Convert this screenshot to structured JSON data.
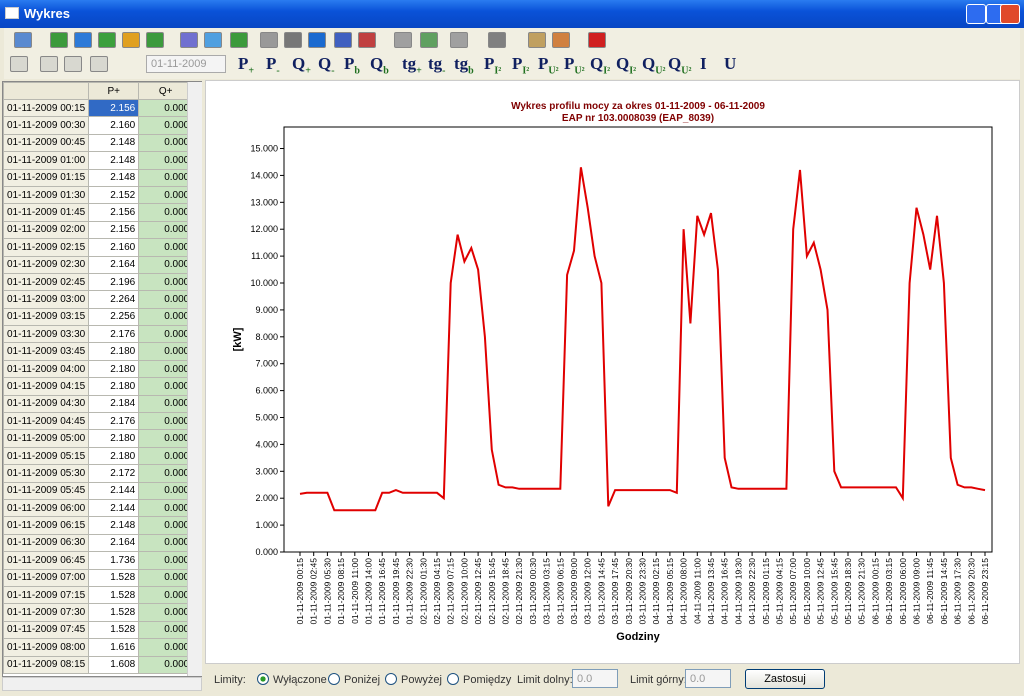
{
  "window": {
    "title": "Wykres"
  },
  "toolbar": {
    "date": "01-11-2009",
    "buttons": [
      {
        "base": "P",
        "sub": "+"
      },
      {
        "base": "P",
        "sub": "-"
      },
      {
        "base": "Q",
        "sub": "+"
      },
      {
        "base": "Q",
        "sub": "-"
      },
      {
        "base": "P",
        "sub": "b"
      },
      {
        "base": "Q",
        "sub": "b"
      },
      {
        "base": "tg",
        "sub": "+"
      },
      {
        "base": "tg",
        "sub": "-"
      },
      {
        "base": "tg",
        "sub": "b"
      },
      {
        "base": "P",
        "sub": "I²"
      },
      {
        "base": "P",
        "sub": "I²"
      },
      {
        "base": "P",
        "sub": "U²"
      },
      {
        "base": "P",
        "sub": "U²"
      },
      {
        "base": "Q",
        "sub": "I²"
      },
      {
        "base": "Q",
        "sub": "I²"
      },
      {
        "base": "Q",
        "sub": "U²"
      },
      {
        "base": "Q",
        "sub": "U²"
      },
      {
        "base": "I"
      },
      {
        "base": "U"
      }
    ]
  },
  "table": {
    "header": [
      "P+",
      "Q+"
    ],
    "rows": [
      [
        "01-11-2009 00:15",
        "2.156",
        "0.000"
      ],
      [
        "01-11-2009 00:30",
        "2.160",
        "0.000"
      ],
      [
        "01-11-2009 00:45",
        "2.148",
        "0.000"
      ],
      [
        "01-11-2009 01:00",
        "2.148",
        "0.000"
      ],
      [
        "01-11-2009 01:15",
        "2.148",
        "0.000"
      ],
      [
        "01-11-2009 01:30",
        "2.152",
        "0.000"
      ],
      [
        "01-11-2009 01:45",
        "2.156",
        "0.000"
      ],
      [
        "01-11-2009 02:00",
        "2.156",
        "0.000"
      ],
      [
        "01-11-2009 02:15",
        "2.160",
        "0.000"
      ],
      [
        "01-11-2009 02:30",
        "2.164",
        "0.000"
      ],
      [
        "01-11-2009 02:45",
        "2.196",
        "0.000"
      ],
      [
        "01-11-2009 03:00",
        "2.264",
        "0.000"
      ],
      [
        "01-11-2009 03:15",
        "2.256",
        "0.000"
      ],
      [
        "01-11-2009 03:30",
        "2.176",
        "0.000"
      ],
      [
        "01-11-2009 03:45",
        "2.180",
        "0.000"
      ],
      [
        "01-11-2009 04:00",
        "2.180",
        "0.000"
      ],
      [
        "01-11-2009 04:15",
        "2.180",
        "0.000"
      ],
      [
        "01-11-2009 04:30",
        "2.184",
        "0.000"
      ],
      [
        "01-11-2009 04:45",
        "2.176",
        "0.000"
      ],
      [
        "01-11-2009 05:00",
        "2.180",
        "0.000"
      ],
      [
        "01-11-2009 05:15",
        "2.180",
        "0.000"
      ],
      [
        "01-11-2009 05:30",
        "2.172",
        "0.000"
      ],
      [
        "01-11-2009 05:45",
        "2.144",
        "0.000"
      ],
      [
        "01-11-2009 06:00",
        "2.144",
        "0.000"
      ],
      [
        "01-11-2009 06:15",
        "2.148",
        "0.000"
      ],
      [
        "01-11-2009 06:30",
        "2.164",
        "0.000"
      ],
      [
        "01-11-2009 06:45",
        "1.736",
        "0.000"
      ],
      [
        "01-11-2009 07:00",
        "1.528",
        "0.000"
      ],
      [
        "01-11-2009 07:15",
        "1.528",
        "0.000"
      ],
      [
        "01-11-2009 07:30",
        "1.528",
        "0.000"
      ],
      [
        "01-11-2009 07:45",
        "1.528",
        "0.000"
      ],
      [
        "01-11-2009 08:00",
        "1.616",
        "0.000"
      ],
      [
        "01-11-2009 08:15",
        "1.608",
        "0.000"
      ]
    ]
  },
  "chart_data": {
    "type": "line",
    "title": "Wykres profilu mocy za okres 01-11-2009 - 06-11-2009",
    "subtitle": "EAP nr 103.0008039 (EAP_8039)",
    "y_label": "[kW]",
    "x_label": "Godziny",
    "color": "#e00000",
    "categories": [
      "01-11-2009 00:15",
      null,
      "01-11-2009 02:45",
      null,
      "01-11-2009 05:30",
      null,
      "01-11-2009 08:15",
      null,
      "01-11-2009 11:00",
      null,
      "01-11-2009 14:00",
      null,
      "01-11-2009 16:45",
      null,
      "01-11-2009 19:45",
      null,
      "01-11-2009 22:30",
      null,
      "02-11-2009 01:30",
      null,
      "02-11-2009 04:15",
      null,
      "02-11-2009 07:15",
      null,
      "02-11-2009 10:00",
      null,
      "02-11-2009 12:45",
      null,
      "02-11-2009 15:45",
      null,
      "02-11-2009 18:45",
      null,
      "02-11-2009 21:30",
      null,
      "03-11-2009 00:30",
      null,
      "03-11-2009 03:15",
      null,
      "03-11-2009 06:15",
      null,
      "03-11-2009 09:00",
      null,
      "03-11-2009 12:00",
      null,
      "03-11-2009 14:45",
      null,
      "03-11-2009 17:45",
      null,
      "03-11-2009 20:30",
      null,
      "03-11-2009 23:30",
      null,
      "04-11-2009 02:15",
      null,
      "04-11-2009 05:15",
      null,
      "04-11-2009 08:00",
      null,
      "04-11-2009 11:00",
      null,
      "04-11-2009 13:45",
      null,
      "04-11-2009 16:45",
      null,
      "04-11-2009 19:30",
      null,
      "04-11-2009 22:30",
      null,
      "05-11-2009 01:15",
      null,
      "05-11-2009 04:15",
      null,
      "05-11-2009 07:00",
      null,
      "05-11-2009 10:00",
      null,
      "05-11-2009 12:45",
      null,
      "05-11-2009 15:45",
      null,
      "05-11-2009 18:30",
      null,
      "05-11-2009 21:30",
      null,
      "06-11-2009 00:15",
      null,
      "06-11-2009 03:15",
      null,
      "06-11-2009 06:00",
      null,
      "06-11-2009 09:00",
      null,
      "06-11-2009 11:45",
      null,
      "06-11-2009 14:45",
      null,
      "06-11-2009 17:30",
      null,
      "06-11-2009 20:30",
      null,
      "06-11-2009 23:15"
    ],
    "values": [
      2.16,
      2.2,
      2.2,
      2.2,
      2.2,
      1.55,
      1.55,
      1.55,
      1.55,
      1.55,
      1.55,
      1.55,
      2.2,
      2.2,
      2.3,
      2.2,
      2.2,
      2.2,
      2.2,
      2.2,
      2.2,
      2.0,
      10.0,
      11.8,
      10.8,
      11.3,
      10.5,
      8.0,
      3.8,
      2.5,
      2.4,
      2.4,
      2.35,
      2.35,
      2.35,
      2.35,
      2.35,
      2.35,
      2.35,
      10.3,
      11.2,
      14.3,
      12.8,
      11.0,
      10.0,
      1.7,
      2.3,
      2.3,
      2.3,
      2.3,
      2.3,
      2.3,
      2.3,
      2.3,
      2.3,
      2.2,
      12.0,
      8.5,
      12.5,
      11.8,
      12.6,
      10.5,
      3.5,
      2.4,
      2.35,
      2.35,
      2.35,
      2.35,
      2.35,
      2.35,
      2.35,
      2.35,
      12.0,
      14.2,
      11.0,
      11.5,
      10.5,
      9.0,
      3.0,
      2.4,
      2.4,
      2.4,
      2.4,
      2.4,
      2.4,
      2.4,
      2.4,
      2.4,
      2.0,
      10.0,
      12.8,
      11.8,
      10.5,
      12.5,
      10.0,
      3.5,
      2.5,
      2.4,
      2.4,
      2.35,
      2.3
    ],
    "ylim": [
      0,
      15.8
    ],
    "yticks": [
      {
        "value": 0,
        "label": "0.000"
      },
      {
        "value": 1,
        "label": "1.000"
      },
      {
        "value": 2,
        "label": "2.000"
      },
      {
        "value": 3,
        "label": "3.000"
      },
      {
        "value": 4,
        "label": "4.000"
      },
      {
        "value": 5,
        "label": "5.000"
      },
      {
        "value": 6,
        "label": "6.000"
      },
      {
        "value": 7,
        "label": "7.000"
      },
      {
        "value": 8,
        "label": "8.000"
      },
      {
        "value": 9,
        "label": "9.000"
      },
      {
        "value": 10,
        "label": "10.000"
      },
      {
        "value": 11,
        "label": "11.000"
      },
      {
        "value": 12,
        "label": "12.000"
      },
      {
        "value": 13,
        "label": "13.000"
      },
      {
        "value": 14,
        "label": "14.000"
      },
      {
        "value": 15,
        "label": "15.000"
      }
    ],
    "grid": false
  },
  "limits": {
    "label": "Limity:",
    "options": [
      "Wyłączone",
      "Poniżej",
      "Powyżej",
      "Pomiędzy"
    ],
    "selected": 0,
    "lower_label": "Limit dolny:",
    "lower_value": "0.0",
    "upper_label": "Limit górny:",
    "upper_value": "0.0",
    "apply": "Zastosuj"
  }
}
